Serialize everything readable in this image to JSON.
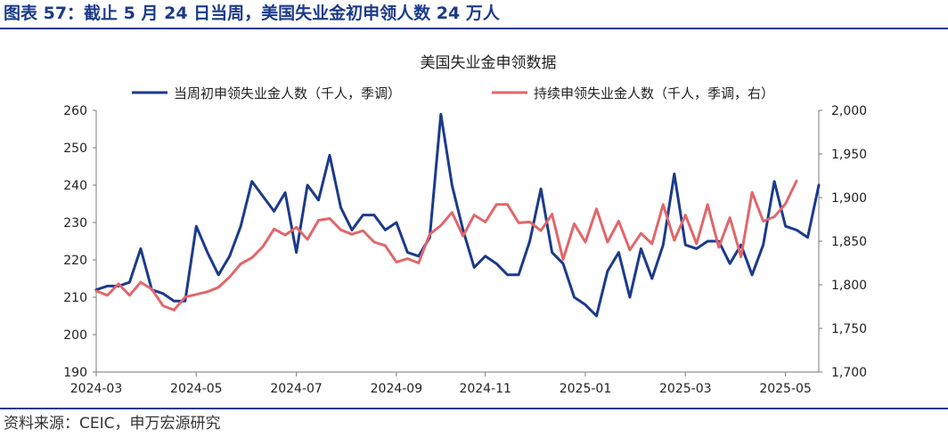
{
  "figure": {
    "title": "图表 57：截止 5 月 24 日当周，美国失业金初申领人数 24 万人",
    "source": "资料来源：CEIC，申万宏源研究"
  },
  "colors": {
    "initial": "#1b3a8a",
    "continuing": "#e0676b",
    "brand": "#1b3a8a"
  },
  "chart_data": {
    "type": "line",
    "title": "美国失业金申领数据",
    "legend_position": "top",
    "x_tick_labels": [
      "2024-03",
      "2024-05",
      "2024-07",
      "2024-09",
      "2024-11",
      "2025-01",
      "2025-03",
      "2025-05"
    ],
    "x_tick_week_index": [
      0,
      9,
      18,
      27,
      35,
      44,
      53,
      62
    ],
    "left_axis": {
      "ylim": [
        190,
        260
      ],
      "ticks": [
        "190",
        "200",
        "210",
        "220",
        "230",
        "240",
        "250",
        "260"
      ],
      "tick_values": [
        190,
        200,
        210,
        220,
        230,
        240,
        250,
        260
      ]
    },
    "right_axis": {
      "ylim": [
        1700,
        2000
      ],
      "ticks": [
        "1,700",
        "1,750",
        "1,800",
        "1,850",
        "1,900",
        "1,950",
        "2,000"
      ],
      "tick_values": [
        1700,
        1750,
        1800,
        1850,
        1900,
        1950,
        2000
      ]
    },
    "series": [
      {
        "name": "当周初申领失业金人数（千人，季调）",
        "axis": "left",
        "values": [
          212,
          213,
          213,
          214,
          223,
          212,
          211,
          209,
          209,
          229,
          222,
          216,
          221,
          229,
          241,
          237,
          233,
          238,
          222,
          240,
          236,
          248,
          234,
          228,
          232,
          232,
          228,
          230,
          222,
          221,
          226,
          259,
          240,
          228,
          218,
          221,
          219,
          216,
          216,
          225,
          239,
          222,
          219,
          210,
          208,
          205,
          217,
          222,
          210,
          223,
          215,
          224,
          243,
          224,
          223,
          225,
          225,
          219,
          224,
          216,
          224,
          241,
          229,
          228,
          226,
          240
        ]
      },
      {
        "name": "持续申领失业金人数（千人，季调，右）",
        "axis": "right",
        "values": [
          1793,
          1788,
          1801,
          1788,
          1803,
          1795,
          1776,
          1771,
          1786,
          1789,
          1792,
          1797,
          1809,
          1824,
          1831,
          1844,
          1864,
          1857,
          1866,
          1852,
          1874,
          1876,
          1863,
          1858,
          1862,
          1849,
          1845,
          1826,
          1830,
          1825,
          1858,
          1868,
          1883,
          1856,
          1880,
          1872,
          1892,
          1892,
          1871,
          1872,
          1862,
          1881,
          1829,
          1870,
          1849,
          1887,
          1849,
          1873,
          1840,
          1859,
          1847,
          1892,
          1851,
          1880,
          1847,
          1892,
          1843,
          1877,
          1832,
          1906,
          1873,
          1878,
          1893,
          1919
        ]
      }
    ]
  }
}
